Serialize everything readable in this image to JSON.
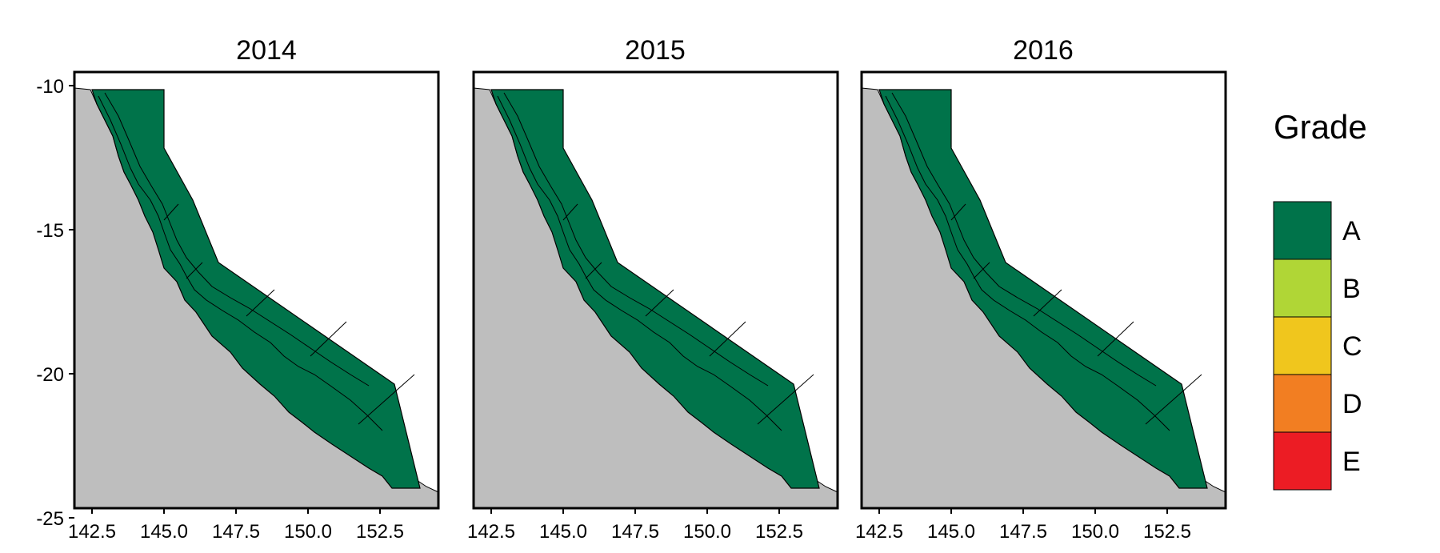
{
  "panels": [
    {
      "title": "2014"
    },
    {
      "title": "2015"
    },
    {
      "title": "2016"
    }
  ],
  "axes": {
    "x_ticks": [
      "142.5",
      "145.0",
      "147.5",
      "150.0",
      "152.5"
    ],
    "y_ticks": [
      "-10",
      "-15",
      "-20",
      "-25"
    ]
  },
  "legend": {
    "title": "Grade",
    "entries": [
      {
        "label": "A",
        "color": "#00734a"
      },
      {
        "label": "B",
        "color": "#b0d636"
      },
      {
        "label": "C",
        "color": "#f0c61d"
      },
      {
        "label": "D",
        "color": "#f27e22"
      },
      {
        "label": "E",
        "color": "#ec1c24"
      }
    ]
  },
  "colors": {
    "land": "#bebebe",
    "region_grade": "A"
  }
}
